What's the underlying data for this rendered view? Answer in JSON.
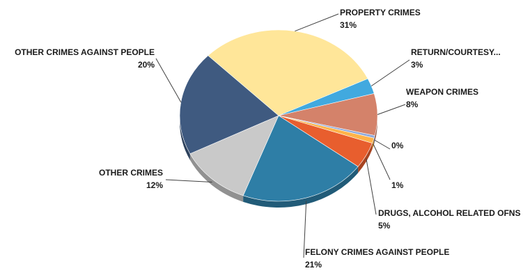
{
  "chart_data": {
    "type": "pie",
    "style": "3d",
    "title": "",
    "categories": [
      "PROPERTY CRIMES",
      "RETURN/COURTESY...",
      "WEAPON CRIMES",
      "",
      "",
      "DRUGS, ALCOHOL RELATED OFNS",
      "FELONY CRIMES AGAINST PEOPLE",
      "OTHER CRIMES",
      "OTHER CRIMES AGAINST PEOPLE"
    ],
    "values": [
      31,
      3,
      8,
      0,
      1,
      5,
      21,
      12,
      20
    ],
    "labels": [
      "31%",
      "3%",
      "8%",
      "0%",
      "1%",
      "5%",
      "21%",
      "12%",
      "20%"
    ],
    "colors": [
      "#FFE699",
      "#41A9DF",
      "#D4826A",
      "#8FAADC",
      "#FFB34A",
      "#E85E2E",
      "#2E7EA6",
      "#C9C9C9",
      "#3F5A80"
    ]
  }
}
